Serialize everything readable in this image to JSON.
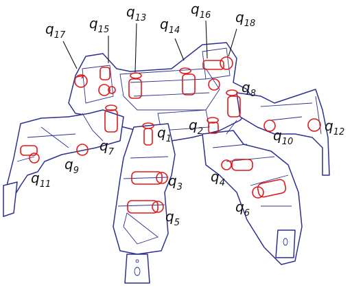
{
  "colors": {
    "outline": "#2b2f8f",
    "joint": "#e01818",
    "label": "#111111"
  },
  "labels": {
    "q1": "q",
    "q1s": "1",
    "q2": "q",
    "q2s": "2",
    "q3": "q",
    "q3s": "3",
    "q4": "q",
    "q4s": "4",
    "q5": "q",
    "q5s": "5",
    "q6": "q",
    "q6s": "6",
    "q7": "q",
    "q7s": "7",
    "q8": "q",
    "q8s": "8",
    "q9": "q",
    "q9s": "9",
    "q10": "q",
    "q10s": "10",
    "q11": "q",
    "q11s": "11",
    "q12": "q",
    "q12s": "12",
    "q13": "q",
    "q13s": "13",
    "q14": "q",
    "q14s": "14",
    "q15": "q",
    "q15s": "15",
    "q16": "q",
    "q16s": "16",
    "q17": "q",
    "q17s": "17",
    "q18": "q",
    "q18s": "18"
  }
}
